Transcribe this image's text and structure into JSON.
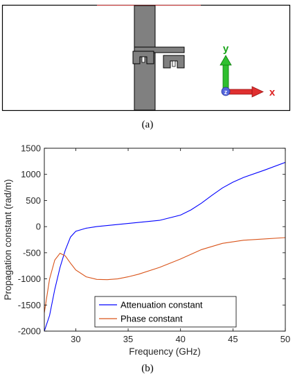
{
  "figure": {
    "caption_a": "(a)",
    "caption_b": "(b)",
    "axis_labels": {
      "x": "x",
      "y": "y",
      "z": "z"
    }
  },
  "chart_data": {
    "type": "line",
    "title": "",
    "xlabel": "Frequency (GHz)",
    "ylabel": "Propagation constant (rad/m)",
    "xlim": [
      27,
      50
    ],
    "ylim": [
      -2000,
      1500
    ],
    "xticks": [
      30,
      35,
      40,
      45,
      50
    ],
    "yticks": [
      -2000,
      -1500,
      -1000,
      -500,
      0,
      500,
      1000,
      1500
    ],
    "grid": false,
    "legend_position": "bottom-center",
    "series": [
      {
        "name": "Attenuation constant",
        "color": "#0000ff",
        "x": [
          27.0,
          27.5,
          28.0,
          28.5,
          29.0,
          29.5,
          30.0,
          31.0,
          32.0,
          33.0,
          35.0,
          38.0,
          40.0,
          41.0,
          42.0,
          43.0,
          44.0,
          45.0,
          46.0,
          48.0,
          50.0
        ],
        "y": [
          -2000,
          -1700,
          -1200,
          -780,
          -450,
          -200,
          -90,
          -30,
          0,
          20,
          60,
          120,
          220,
          320,
          450,
          600,
          740,
          850,
          940,
          1080,
          1230
        ]
      },
      {
        "name": "Phase constant",
        "color": "#d95319",
        "x": [
          27.0,
          27.5,
          28.0,
          28.5,
          29.0,
          29.5,
          30.0,
          31.0,
          32.0,
          33.0,
          34.0,
          35.0,
          36.0,
          38.0,
          40.0,
          42.0,
          44.0,
          46.0,
          48.0,
          50.0
        ],
        "y": [
          -1650,
          -1000,
          -640,
          -510,
          -560,
          -700,
          -830,
          -960,
          -1010,
          -1015,
          -1000,
          -960,
          -910,
          -780,
          -620,
          -440,
          -320,
          -260,
          -235,
          -210
        ]
      }
    ]
  }
}
